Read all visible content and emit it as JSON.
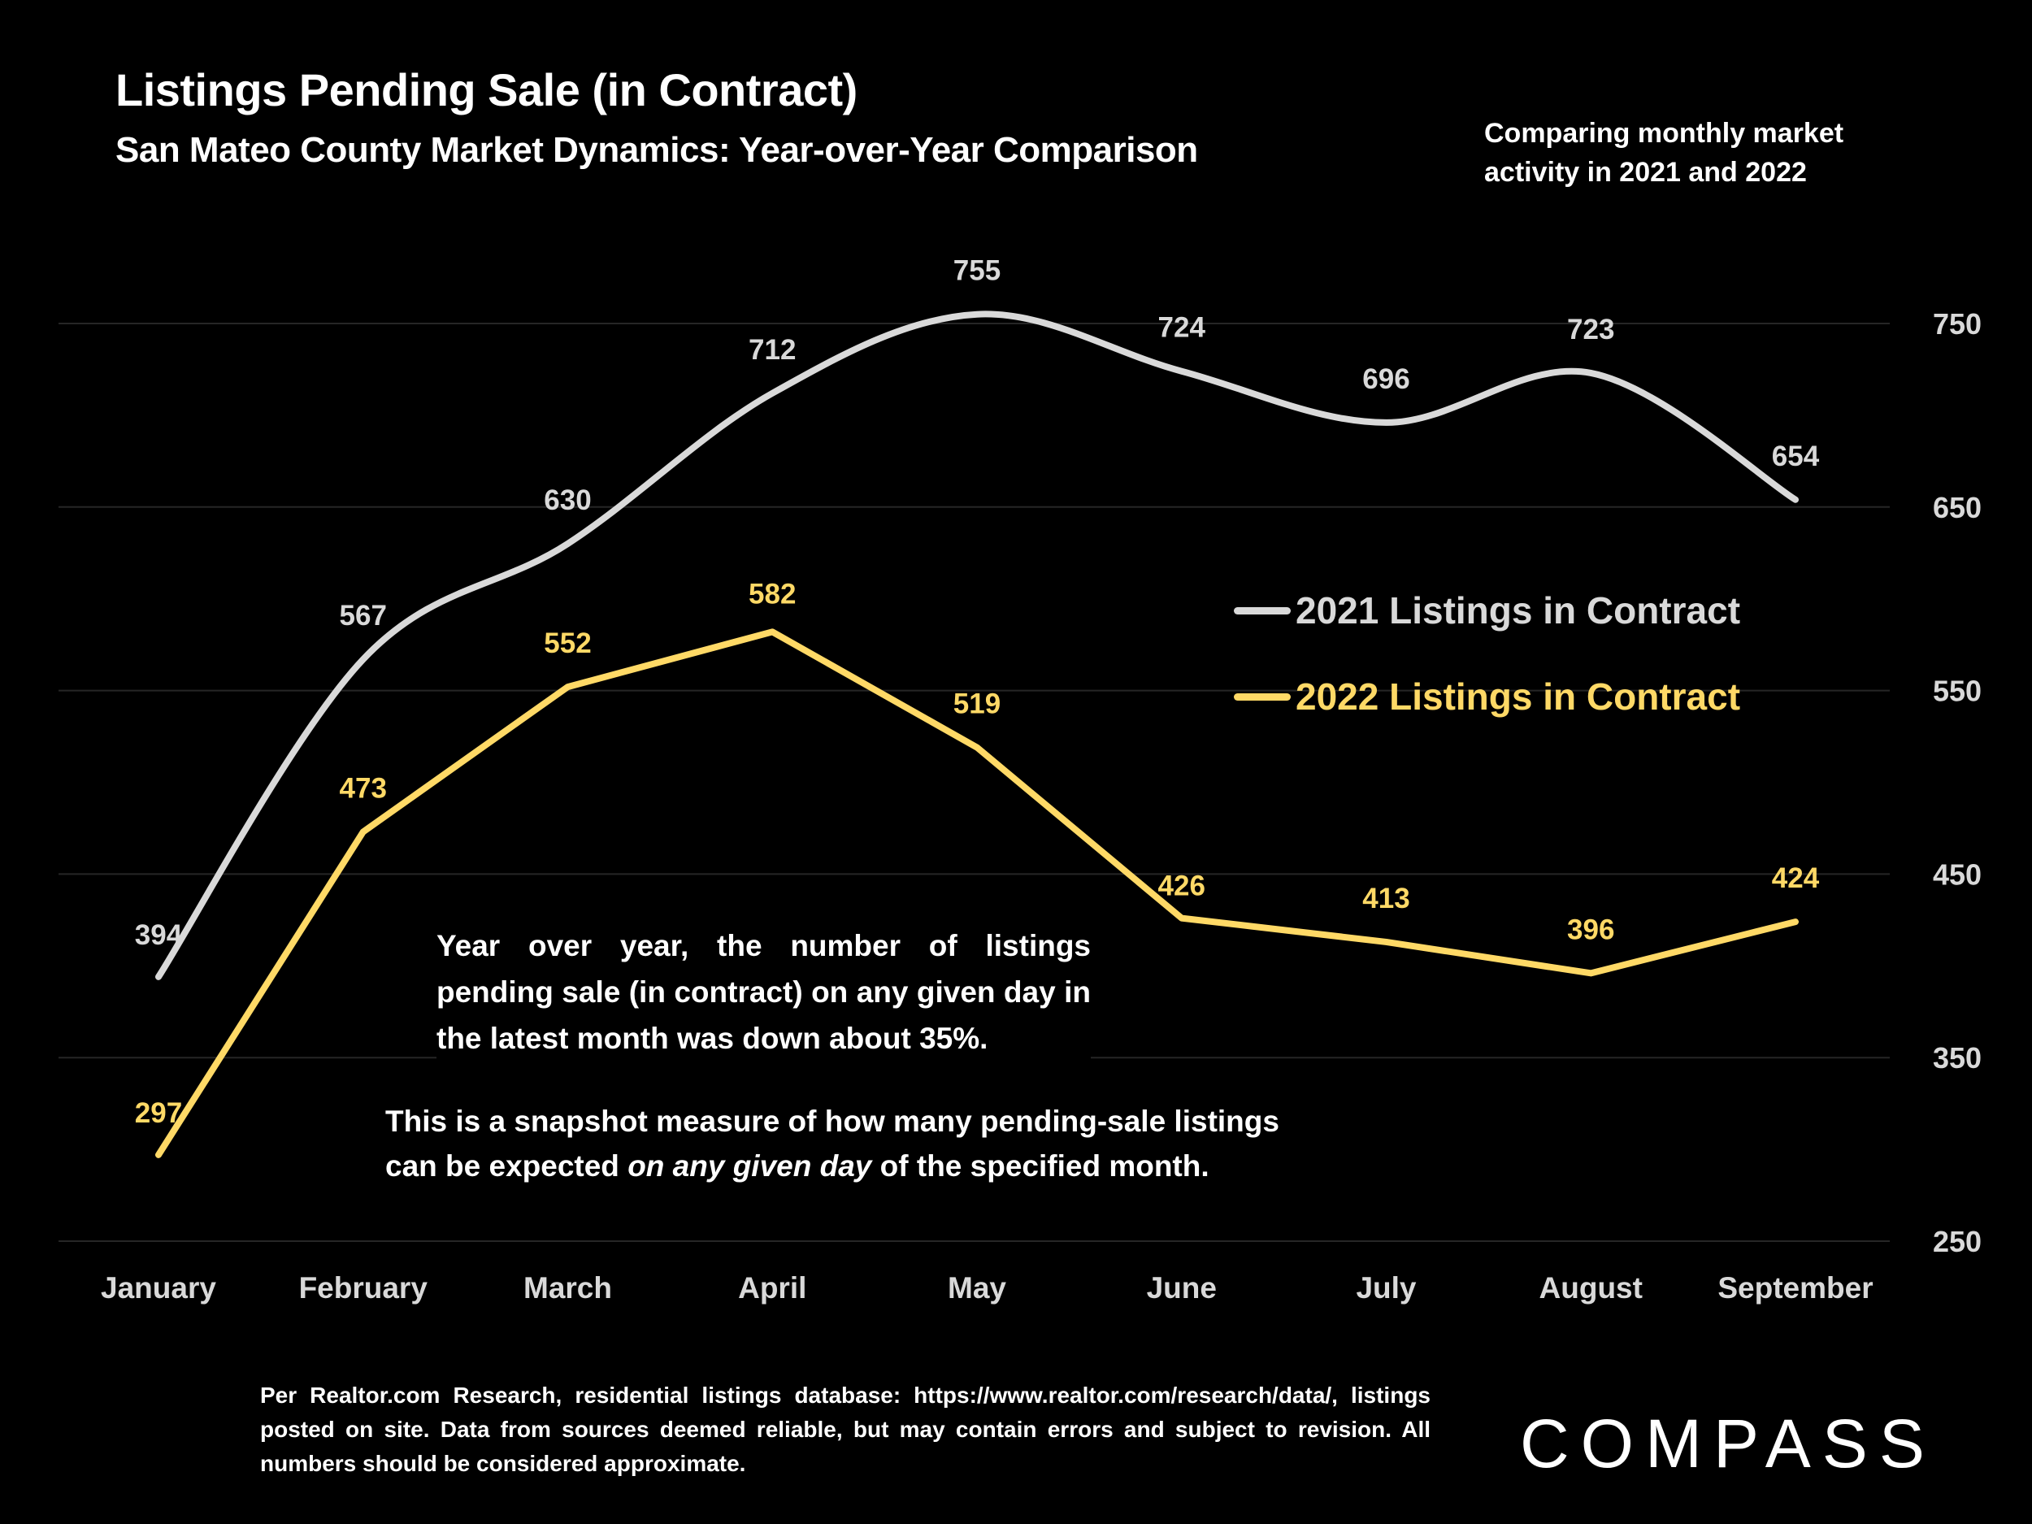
{
  "header": {
    "title": "Listings Pending Sale (in Contract)",
    "subtitle": "San Mateo County Market Dynamics: Year-over-Year Comparison",
    "note_line1": "Comparing monthly market",
    "note_line2": "activity in 2021 and 2022"
  },
  "annotations": {
    "yoy": "Year over year, the number of listings pending sale (in contract) on any given day in the latest month was down about 35%.",
    "snapshot_line1": "This is a snapshot measure of how many pending-sale listings",
    "snapshot_line2_pre": "can be expected ",
    "snapshot_line2_em": "on any given day",
    "snapshot_line2_post": " of the specified month."
  },
  "footer": {
    "source": "Per Realtor.com Research, residential listings database:  https://www.realtor.com/research/data/, listings posted on site. Data from sources deemed reliable, but may contain errors and subject to revision. All numbers should be considered approximate."
  },
  "brand": {
    "logo_text": "COMPASS"
  },
  "colors": {
    "series_2021": "#d9d9d9",
    "series_2022": "#ffd966",
    "grid": "#262626",
    "background": "#000000"
  },
  "chart_data": {
    "type": "line",
    "title": "Listings Pending Sale (in Contract)",
    "subtitle": "San Mateo County Market Dynamics: Year-over-Year Comparison",
    "xlabel": "",
    "ylabel": "",
    "categories": [
      "January",
      "February",
      "March",
      "April",
      "May",
      "June",
      "July",
      "August",
      "September"
    ],
    "y_ticks": [
      250,
      350,
      450,
      550,
      650,
      750
    ],
    "ylim": [
      250,
      750
    ],
    "y_axis_side": "right",
    "grid": true,
    "legend_position": "center-right",
    "series": [
      {
        "name": "2021 Listings in Contract",
        "color": "#d9d9d9",
        "smooth": true,
        "values": [
          394,
          567,
          630,
          712,
          755,
          724,
          696,
          723,
          654
        ]
      },
      {
        "name": "2022 Listings in Contract",
        "color": "#ffd966",
        "smooth": false,
        "values": [
          297,
          473,
          552,
          582,
          519,
          426,
          413,
          396,
          424
        ]
      }
    ]
  }
}
